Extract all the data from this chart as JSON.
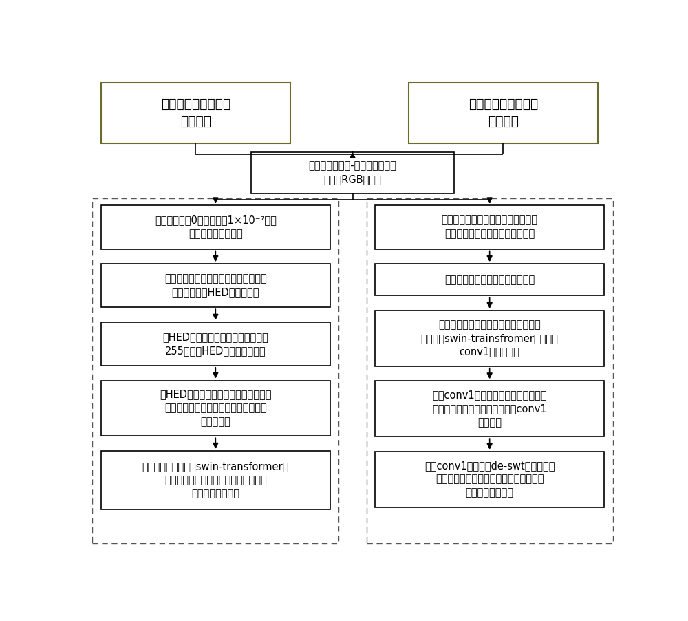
{
  "title_left": "离线图像颜色反卷积\n方案流程",
  "title_right": "在线图像颜色反卷积\n方案流程",
  "top_box": "获取经过苏木精-伊红染色的组织\n病理学RGB图像。",
  "left_boxes": [
    "将数据集图像0像素值置为1×10⁻⁷，并\n对像素进行标准化。",
    "使用标准颜色反卷积矩阵对图像进行染\n色分离，得到HED染色矩阵。",
    "对HED染色矩阵进行归一化，再乘以\n255，得到HED颜色空间图像。",
    "对HED颜色空间图像划分训练集、测试\n集、验证集，并对训练集图像进行在线\n数据增强。",
    "使用训练集对修改的swin-transformer模\n型进行训练，用验证集进行验证，选取\n最佳的网络模型。"
  ],
  "right_boxes": [
    "将数据集划分训练集、测试集、验证\n集，对训练集进行在线数据增强。",
    "对所有图像进行归一化与标准化。",
    "将标准颜色反卷积矩阵作为参数加载到\n修改后的swin-trainsfromer模型中的\nconv1卷积层中。",
    "修改conv1卷积层学习率，使用训练集\n对模型进行微调，选择出最佳的conv1\n层参数。",
    "迁移conv1层参数到de-swt模型中，使\n用训练集进行微调，验证集进行验证，选\n出最佳的网络模型"
  ],
  "bg_color": "#ffffff",
  "box_edge_color": "#000000",
  "title_box_edge_color": "#6b6b2a",
  "dashed_box_color": "#555555",
  "arrow_color": "#000000",
  "font_color": "#000000",
  "font_size": 10.5,
  "title_font_size": 13.5,
  "fig_width": 10.0,
  "fig_height": 9.02,
  "dpi": 100
}
